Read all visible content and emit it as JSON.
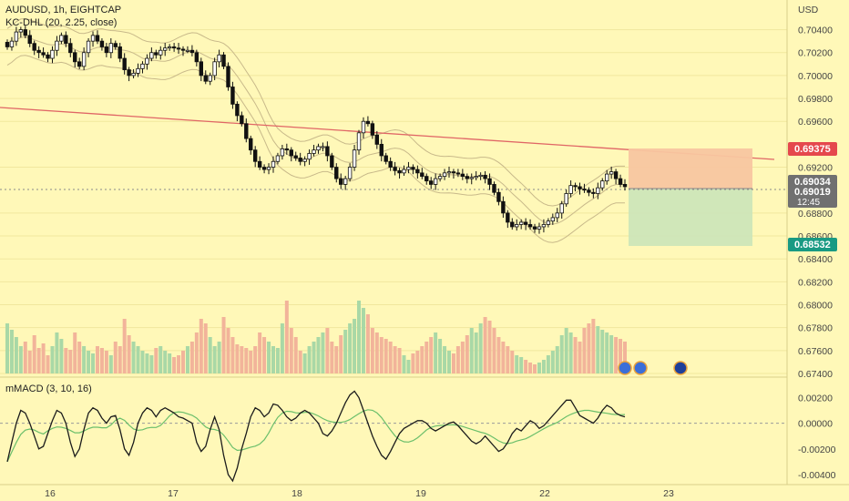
{
  "header": {
    "symbol_line": "AUDUSD, 1h, EIGHTCAP",
    "indicator_line": "KC-DHL (20, 2.25, close)"
  },
  "price_axis": {
    "currency": "USD",
    "ticks": [
      "0.70400",
      "0.70200",
      "0.70000",
      "0.69800",
      "0.69600",
      "0.69200",
      "0.68800",
      "0.68600",
      "0.68400",
      "0.68200",
      "0.68000",
      "0.67800",
      "0.67600",
      "0.67400"
    ]
  },
  "badges": {
    "stop": "0.69375",
    "current": "0.69034",
    "current2": "0.69019",
    "countdown": "12:45",
    "target": "0.68532"
  },
  "macd": {
    "label": "mMACD (3, 10, 16)",
    "ticks": [
      "0.00200",
      "0.00000",
      "-0.00200",
      "-0.00400"
    ]
  },
  "time_axis": {
    "ticks": [
      "16",
      "17",
      "18",
      "19",
      "22",
      "23"
    ]
  },
  "colors": {
    "background": "#FFF8B8",
    "up_volume": "#A9D8A6",
    "down_volume": "#F2B49A",
    "trendline": "#E06666",
    "stop_zone": "#F8C6A0",
    "target_zone": "#CDE6B8",
    "stop_badge": "#E5484D",
    "target_badge": "#199A83",
    "current_badge": "#707070",
    "macd_line": "#1c1c1c",
    "signal_line": "#6BBF6B"
  },
  "chart_data": {
    "type": "candlestick",
    "title": "AUDUSD, 1h, EIGHTCAP",
    "overlays": [
      "KC-DHL (20, 2.25, close)",
      "trendline",
      "position: stop 0.69375, entry 0.69034, target 0.68532"
    ],
    "y_range": [
      0.674,
      0.705
    ],
    "x_ticks": [
      "16",
      "17",
      "18",
      "19",
      "22",
      "23"
    ],
    "candles_close": [
      0.7025,
      0.703,
      0.7038,
      0.704,
      0.7035,
      0.7028,
      0.7022,
      0.702,
      0.7018,
      0.7015,
      0.7022,
      0.703,
      0.7035,
      0.7028,
      0.702,
      0.7012,
      0.7008,
      0.702,
      0.703,
      0.7035,
      0.703,
      0.7025,
      0.702,
      0.7028,
      0.7025,
      0.7015,
      0.7005,
      0.7,
      0.7002,
      0.7006,
      0.701,
      0.7015,
      0.702,
      0.7018,
      0.7022,
      0.7024,
      0.7025,
      0.7024,
      0.7023,
      0.7022,
      0.7022,
      0.702,
      0.7012,
      0.7,
      0.6995,
      0.7,
      0.7012,
      0.7018,
      0.7008,
      0.699,
      0.6975,
      0.6965,
      0.6958,
      0.6945,
      0.6935,
      0.6925,
      0.692,
      0.6918,
      0.692,
      0.6925,
      0.693,
      0.6936,
      0.6935,
      0.693,
      0.6928,
      0.6925,
      0.6927,
      0.6932,
      0.6935,
      0.6938,
      0.6938,
      0.693,
      0.692,
      0.691,
      0.6905,
      0.691,
      0.692,
      0.6935,
      0.695,
      0.696,
      0.6958,
      0.6948,
      0.694,
      0.693,
      0.6925,
      0.692,
      0.6917,
      0.6915,
      0.6918,
      0.692,
      0.6918,
      0.6915,
      0.6912,
      0.6908,
      0.6905,
      0.691,
      0.6912,
      0.6915,
      0.6916,
      0.6915,
      0.6914,
      0.6912,
      0.691,
      0.6911,
      0.6912,
      0.6913,
      0.691,
      0.6905,
      0.6898,
      0.689,
      0.688,
      0.6872,
      0.6868,
      0.687,
      0.6872,
      0.687,
      0.6868,
      0.6866,
      0.6868,
      0.687,
      0.6873,
      0.6876,
      0.688,
      0.6888,
      0.6897,
      0.6904,
      0.6903,
      0.6901,
      0.69,
      0.6898,
      0.6897,
      0.6902,
      0.6908,
      0.6914,
      0.6916,
      0.691,
      0.6905,
      0.6903
    ],
    "volume_relative": [
      0.55,
      0.48,
      0.4,
      0.3,
      0.35,
      0.25,
      0.42,
      0.28,
      0.33,
      0.2,
      0.3,
      0.45,
      0.38,
      0.28,
      0.26,
      0.45,
      0.35,
      0.3,
      0.25,
      0.22,
      0.3,
      0.28,
      0.25,
      0.2,
      0.35,
      0.3,
      0.6,
      0.42,
      0.35,
      0.3,
      0.25,
      0.22,
      0.2,
      0.28,
      0.3,
      0.25,
      0.22,
      0.18,
      0.2,
      0.25,
      0.3,
      0.35,
      0.45,
      0.6,
      0.55,
      0.4,
      0.3,
      0.35,
      0.62,
      0.5,
      0.4,
      0.32,
      0.3,
      0.28,
      0.25,
      0.3,
      0.45,
      0.4,
      0.35,
      0.3,
      0.28,
      0.55,
      0.8,
      0.5,
      0.4,
      0.25,
      0.22,
      0.3,
      0.35,
      0.4,
      0.45,
      0.5,
      0.35,
      0.3,
      0.42,
      0.48,
      0.55,
      0.6,
      0.8,
      0.72,
      0.65,
      0.5,
      0.45,
      0.4,
      0.38,
      0.35,
      0.3,
      0.28,
      0.2,
      0.15,
      0.22,
      0.25,
      0.3,
      0.35,
      0.4,
      0.45,
      0.38,
      0.3,
      0.25,
      0.22,
      0.3,
      0.35,
      0.42,
      0.5,
      0.45,
      0.55,
      0.62,
      0.58,
      0.5,
      0.4,
      0.35,
      0.3,
      0.25,
      0.2,
      0.18,
      0.15,
      0.12,
      0.1,
      0.12,
      0.15,
      0.2,
      0.25,
      0.3,
      0.42,
      0.5,
      0.45,
      0.4,
      0.35,
      0.5,
      0.55,
      0.6,
      0.52,
      0.48,
      0.45,
      0.42,
      0.4,
      0.38,
      0.35
    ],
    "macd_values": [
      -0.003,
      -0.0015,
      0.0,
      0.001,
      0.0008,
      0.0,
      -0.001,
      -0.002,
      -0.0018,
      -0.0008,
      0.0002,
      0.001,
      0.0008,
      0.0,
      -0.0015,
      -0.0026,
      -0.002,
      -0.0005,
      0.0008,
      0.0012,
      0.001,
      0.0004,
      0.0,
      0.0005,
      0.0006,
      -0.0005,
      -0.002,
      -0.0025,
      -0.0015,
      0.0,
      0.0008,
      0.0012,
      0.001,
      0.0005,
      0.001,
      0.0012,
      0.001,
      0.0008,
      0.0005,
      0.0004,
      0.0002,
      0.0,
      -0.0015,
      -0.0022,
      -0.0018,
      -0.0005,
      0.0005,
      -0.0005,
      -0.0025,
      -0.004,
      -0.0045,
      -0.0035,
      -0.002,
      -0.0008,
      0.0005,
      0.0012,
      0.001,
      0.0005,
      0.0008,
      0.0015,
      0.0014,
      0.001,
      0.0005,
      0.0002,
      0.0004,
      0.0008,
      0.001,
      0.0008,
      0.0004,
      0.0,
      -0.0008,
      -0.001,
      -0.0006,
      0.0,
      0.0008,
      0.0016,
      0.0022,
      0.0025,
      0.002,
      0.001,
      0.0,
      -0.001,
      -0.0018,
      -0.0025,
      -0.0028,
      -0.0022,
      -0.0015,
      -0.0008,
      -0.0004,
      -0.0002,
      0.0,
      0.0002,
      0.0002,
      0.0,
      -0.0004,
      -0.0006,
      -0.0004,
      -0.0002,
      0.0,
      0.0001,
      -0.0002,
      -0.0006,
      -0.001,
      -0.0014,
      -0.0016,
      -0.0014,
      -0.001,
      -0.0014,
      -0.0018,
      -0.0022,
      -0.002,
      -0.0015,
      -0.0008,
      -0.0004,
      -0.0006,
      -0.0002,
      0.0002,
      0.0,
      -0.0004,
      -0.0002,
      0.0002,
      0.0006,
      0.001,
      0.0014,
      0.0018,
      0.0018,
      0.0012,
      0.0006,
      0.0004,
      0.0002,
      0.0,
      0.0004,
      0.001,
      0.0014,
      0.0012,
      0.0008,
      0.0006,
      0.0005
    ],
    "macd_range": [
      -0.0045,
      0.0026
    ]
  }
}
